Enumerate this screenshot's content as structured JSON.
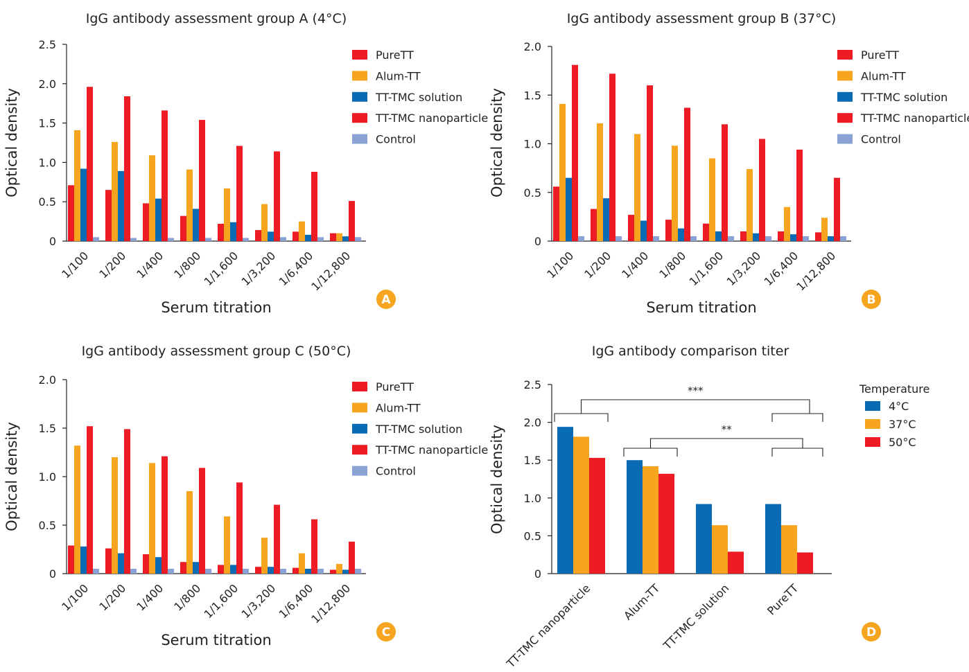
{
  "colors": {
    "pure_tt": "#ed1c24",
    "alum_tt": "#f7a51e",
    "tt_tmc_solution": "#0a6bb5",
    "tt_tmc_nanoparticle": "#ed1c24",
    "control": "#8ba3d4",
    "badge": "#f7a51e",
    "temp_4": "#0a6bb5",
    "temp_37": "#f7a51e",
    "temp_50": "#ed1c24"
  },
  "chart_data": [
    {
      "id": "A",
      "type": "bar",
      "title": "IgG antibody assessment group A (4°C)",
      "xlabel": "Serum titration",
      "ylabel": "Optical density",
      "ylim": [
        0,
        2.5
      ],
      "yticks": [
        "0",
        "0.5",
        "1.0",
        "1.5",
        "2.0",
        "2.5"
      ],
      "ytick_values": [
        0,
        0.5,
        1.0,
        1.5,
        2.0,
        2.5
      ],
      "categories": [
        "1/100",
        "1/200",
        "1/400",
        "1/800",
        "1/1,600",
        "1/3,200",
        "1/6,400",
        "1/12,800"
      ],
      "legend_position": "right",
      "badge": "A",
      "series": [
        {
          "name": "PureTT",
          "color_key": "pure_tt",
          "values": [
            0.71,
            0.65,
            0.48,
            0.32,
            0.22,
            0.14,
            0.12,
            0.1
          ]
        },
        {
          "name": "Alum-TT",
          "color_key": "alum_tt",
          "values": [
            1.41,
            1.26,
            1.09,
            0.91,
            0.67,
            0.47,
            0.25,
            0.1
          ]
        },
        {
          "name": "TT-TMC solution",
          "color_key": "tt_tmc_solution",
          "values": [
            0.92,
            0.89,
            0.54,
            0.41,
            0.24,
            0.12,
            0.08,
            0.06
          ]
        },
        {
          "name": "TT-TMC nanoparticle",
          "color_key": "tt_tmc_nanoparticle",
          "values": [
            1.96,
            1.84,
            1.66,
            1.54,
            1.21,
            1.14,
            0.88,
            0.51
          ]
        },
        {
          "name": "Control",
          "color_key": "control",
          "values": [
            0.05,
            0.04,
            0.04,
            0.04,
            0.04,
            0.05,
            0.05,
            0.05
          ]
        }
      ]
    },
    {
      "id": "B",
      "type": "bar",
      "title": "IgG antibody assessment group B (37°C)",
      "xlabel": "Serum titration",
      "ylabel": "Optical density",
      "ylim": [
        0,
        2.0
      ],
      "yticks": [
        "0",
        "0.5",
        "1.0",
        "1.5",
        "2.0"
      ],
      "ytick_values": [
        0,
        0.5,
        1.0,
        1.5,
        2.0
      ],
      "categories": [
        "1/100",
        "1/200",
        "1/400",
        "1/800",
        "1/1,600",
        "1/3,200",
        "1/6,400",
        "1/12,800"
      ],
      "legend_position": "right",
      "badge": "B",
      "series": [
        {
          "name": "PureTT",
          "color_key": "pure_tt",
          "values": [
            0.56,
            0.33,
            0.27,
            0.22,
            0.18,
            0.1,
            0.1,
            0.09
          ]
        },
        {
          "name": "Alum-TT",
          "color_key": "alum_tt",
          "values": [
            1.41,
            1.21,
            1.1,
            0.98,
            0.85,
            0.74,
            0.35,
            0.24
          ]
        },
        {
          "name": "TT-TMC solution",
          "color_key": "tt_tmc_solution",
          "values": [
            0.65,
            0.44,
            0.21,
            0.13,
            0.1,
            0.08,
            0.07,
            0.05
          ]
        },
        {
          "name": "TT-TMC nanoparticle",
          "color_key": "tt_tmc_nanoparticle",
          "values": [
            1.81,
            1.72,
            1.6,
            1.37,
            1.2,
            1.05,
            0.94,
            0.65
          ]
        },
        {
          "name": "Control",
          "color_key": "control",
          "values": [
            0.05,
            0.05,
            0.05,
            0.05,
            0.05,
            0.05,
            0.05,
            0.05
          ]
        }
      ]
    },
    {
      "id": "C",
      "type": "bar",
      "title": "IgG antibody assessment group C (50°C)",
      "xlabel": "Serum titration",
      "ylabel": "Optical density",
      "ylim": [
        0,
        2.0
      ],
      "yticks": [
        "0",
        "0.5",
        "1.0",
        "1.5",
        "2.0"
      ],
      "ytick_values": [
        0,
        0.5,
        1.0,
        1.5,
        2.0
      ],
      "categories": [
        "1/100",
        "1/200",
        "1/400",
        "1/800",
        "1/1,600",
        "1/3,200",
        "1/6,400",
        "1/12,800"
      ],
      "legend_position": "right",
      "badge": "C",
      "series": [
        {
          "name": "PureTT",
          "color_key": "pure_tt",
          "values": [
            0.29,
            0.26,
            0.2,
            0.12,
            0.09,
            0.07,
            0.06,
            0.04
          ]
        },
        {
          "name": "Alum-TT",
          "color_key": "alum_tt",
          "values": [
            1.32,
            1.2,
            1.14,
            0.85,
            0.59,
            0.37,
            0.21,
            0.1
          ]
        },
        {
          "name": "TT-TMC solution",
          "color_key": "tt_tmc_solution",
          "values": [
            0.28,
            0.21,
            0.17,
            0.12,
            0.09,
            0.07,
            0.05,
            0.04
          ]
        },
        {
          "name": "TT-TMC nanoparticle",
          "color_key": "tt_tmc_nanoparticle",
          "values": [
            1.52,
            1.49,
            1.21,
            1.09,
            0.94,
            0.71,
            0.56,
            0.33
          ]
        },
        {
          "name": "Control",
          "color_key": "control",
          "values": [
            0.05,
            0.05,
            0.05,
            0.05,
            0.05,
            0.05,
            0.05,
            0.05
          ]
        }
      ]
    },
    {
      "id": "D",
      "type": "bar",
      "title": "IgG antibody comparison titer",
      "xlabel": "",
      "ylabel": "Optical density",
      "ylim": [
        0,
        2.5
      ],
      "yticks": [
        "0",
        "0.5",
        "1.0",
        "1.5",
        "2.0",
        "2.5"
      ],
      "ytick_values": [
        0,
        0.5,
        1.0,
        1.5,
        2.0,
        2.5
      ],
      "categories": [
        "TT-TMC nanoparticle",
        "Alum-TT",
        "TT-TMC solution",
        "PureTT"
      ],
      "legend_title": "Temperature",
      "legend_position": "right",
      "badge": "D",
      "series": [
        {
          "name": "4°C",
          "color_key": "temp_4",
          "values": [
            1.94,
            1.5,
            0.92,
            0.92
          ]
        },
        {
          "name": "37°C",
          "color_key": "temp_37",
          "values": [
            1.81,
            1.42,
            0.64,
            0.64
          ]
        },
        {
          "name": "50°C",
          "color_key": "temp_50",
          "values": [
            1.53,
            1.32,
            0.29,
            0.28
          ]
        }
      ],
      "annotations": [
        {
          "label": "***",
          "from_category": 0,
          "to_category": 3
        },
        {
          "label": "**",
          "from_category": 1,
          "to_category": 3
        }
      ]
    }
  ]
}
